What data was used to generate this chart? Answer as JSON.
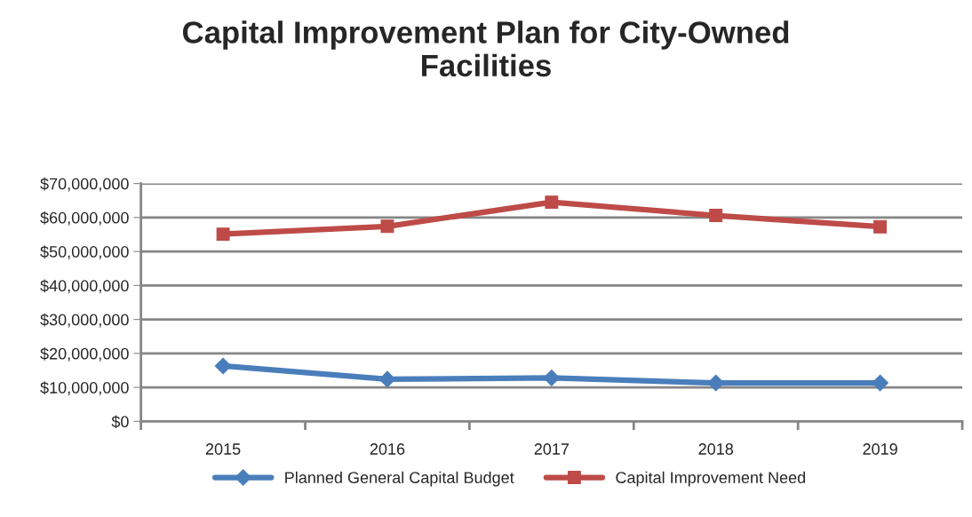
{
  "chart_data": {
    "type": "line",
    "title": "Capital Improvement Plan for City-Owned\nFacilities",
    "categories": [
      "2015",
      "2016",
      "2017",
      "2018",
      "2019"
    ],
    "series": [
      {
        "name": "Planned General Capital Budget",
        "color": "#4a7ebb",
        "marker": "diamond",
        "values": [
          16300000,
          12400000,
          12800000,
          11300000,
          11300000
        ]
      },
      {
        "name": "Capital Improvement Need",
        "color": "#be4b48",
        "marker": "square",
        "values": [
          55100000,
          57400000,
          64500000,
          60600000,
          57300000
        ]
      }
    ],
    "ylim": [
      0,
      70000000
    ],
    "yticks": [
      {
        "value": 0,
        "label": "$0"
      },
      {
        "value": 10000000,
        "label": "$10,000,000"
      },
      {
        "value": 20000000,
        "label": "$20,000,000"
      },
      {
        "value": 30000000,
        "label": "$30,000,000"
      },
      {
        "value": 40000000,
        "label": "$40,000,000"
      },
      {
        "value": 50000000,
        "label": "$50,000,000"
      },
      {
        "value": 60000000,
        "label": "$60,000,000"
      },
      {
        "value": 70000000,
        "label": "$70,000,000"
      }
    ],
    "grid": "y",
    "legend": "bottom"
  }
}
